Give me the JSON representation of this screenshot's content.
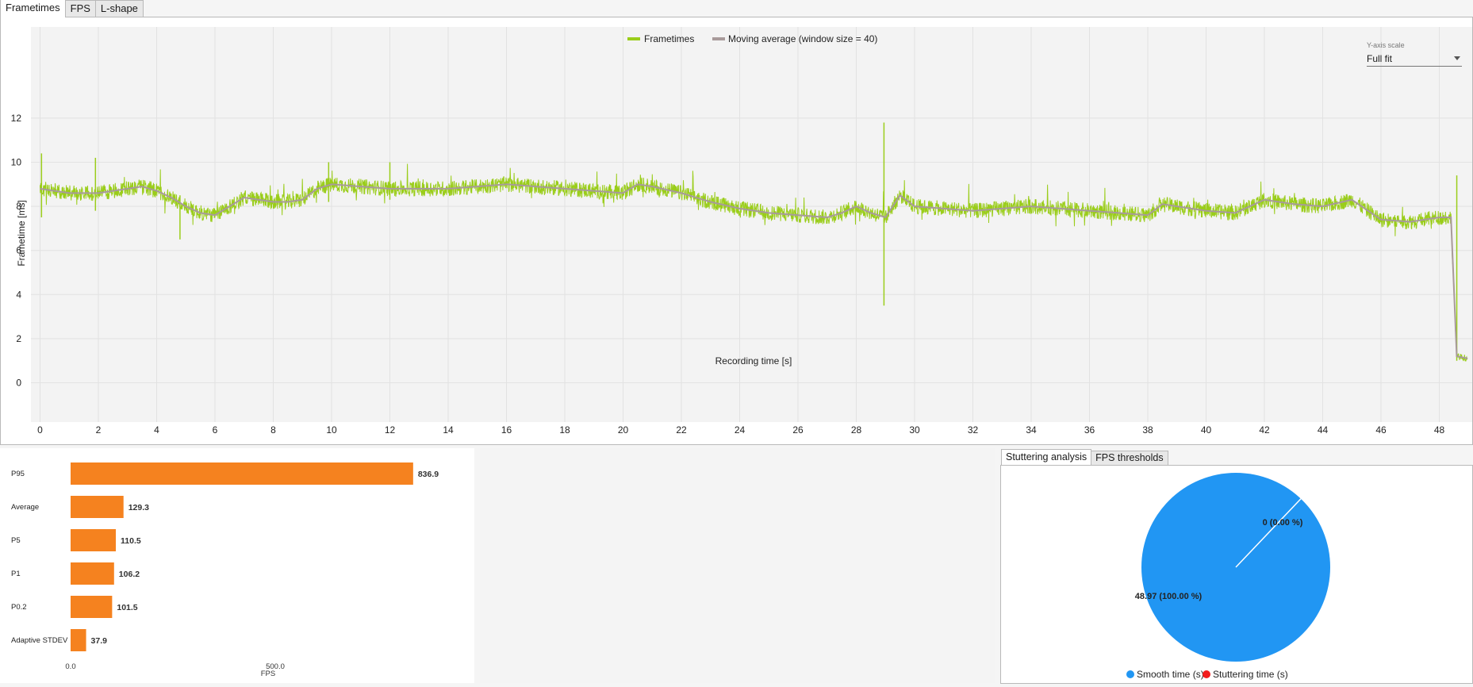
{
  "tabs": [
    {
      "label": "Frametimes",
      "active": true
    },
    {
      "label": "FPS",
      "active": false
    },
    {
      "label": "L-shape",
      "active": false
    }
  ],
  "y_axis_scale": {
    "label": "Y-axis scale",
    "value": "Full fit"
  },
  "chart_data": [
    {
      "type": "line",
      "xlabel": "Recording time [s]",
      "ylabel": "Frametime [ms]",
      "xlim": [
        0,
        48.97
      ],
      "ylim": [
        -0.8,
        13.8
      ],
      "xticks": [
        0,
        2,
        4,
        6,
        8,
        10,
        12,
        14,
        16,
        18,
        20,
        22,
        24,
        26,
        28,
        30,
        32,
        34,
        36,
        38,
        40,
        42,
        44,
        46,
        48
      ],
      "yticks": [
        0,
        2,
        4,
        6,
        8,
        10,
        12
      ],
      "grid": true,
      "legend_position": "top-center",
      "series": [
        {
          "name": "Frametimes",
          "color": "#9acd1a"
        },
        {
          "name": "Moving average (window size = 40)",
          "color": "#a89a9a"
        }
      ],
      "x": [
        0,
        0.5,
        1,
        1.5,
        2,
        2.5,
        3,
        3.5,
        4,
        4.5,
        5,
        5.5,
        6,
        6.5,
        7,
        7.5,
        8,
        8.5,
        9,
        9.5,
        10,
        11,
        12,
        13,
        14,
        15,
        16,
        17,
        18,
        19,
        20,
        20.5,
        21,
        22,
        23,
        24,
        25,
        26,
        27,
        27.5,
        28,
        28.5,
        29,
        29.5,
        30,
        31,
        32,
        33,
        34,
        35,
        36,
        37,
        38,
        38.5,
        39,
        40,
        41,
        42,
        43,
        44,
        45,
        46,
        47,
        48,
        48.4,
        48.6,
        48.97
      ],
      "moving_average": [
        8.8,
        8.7,
        8.6,
        8.6,
        8.6,
        8.7,
        8.8,
        8.9,
        8.7,
        8.4,
        8.0,
        7.7,
        7.6,
        8.0,
        8.4,
        8.3,
        8.2,
        8.2,
        8.3,
        8.8,
        9.0,
        8.9,
        8.8,
        8.8,
        8.8,
        8.9,
        9.0,
        8.9,
        8.8,
        8.7,
        8.6,
        9.0,
        8.9,
        8.6,
        8.2,
        7.9,
        7.7,
        7.6,
        7.5,
        7.7,
        8.0,
        7.7,
        7.5,
        8.5,
        8.0,
        7.9,
        7.8,
        7.9,
        8.0,
        7.9,
        7.8,
        7.7,
        7.6,
        8.1,
        8.0,
        7.8,
        7.7,
        8.3,
        8.1,
        8.0,
        8.3,
        7.4,
        7.3,
        7.5,
        7.5,
        1.2,
        1.1
      ],
      "spikes": [
        {
          "x": 0.05,
          "min": 7.5,
          "max": 10.4
        },
        {
          "x": 1.9,
          "min": 7.8,
          "max": 10.2
        },
        {
          "x": 4.8,
          "min": 6.5,
          "max": 8.5
        },
        {
          "x": 9.9,
          "min": 8.2,
          "max": 10.0
        },
        {
          "x": 12.0,
          "min": 8.3,
          "max": 10.0
        },
        {
          "x": 28.95,
          "min": 3.5,
          "max": 11.8
        },
        {
          "x": 48.6,
          "min": 1.0,
          "max": 9.4
        }
      ]
    },
    {
      "type": "bar",
      "orientation": "horizontal",
      "categories": [
        "P95",
        "Average",
        "P5",
        "P1",
        "P0.2",
        "Adaptive STDEV"
      ],
      "values": [
        836.9,
        129.3,
        110.5,
        106.2,
        101.5,
        37.9
      ],
      "value_labels": [
        "836.9",
        "129.3",
        "110.5",
        "106.2",
        "101.5",
        "37.9"
      ],
      "xlabel": "FPS",
      "xticks": [
        "0.0",
        "500.0"
      ],
      "xlim": [
        0,
        1150
      ],
      "color": "#f5821f"
    },
    {
      "type": "pie",
      "slices": [
        {
          "name": "Smooth time (s)",
          "value": 48.97,
          "label": "48.97 (100.00 %)",
          "color": "#2196f3"
        },
        {
          "name": "Stuttering time (s)",
          "value": 0,
          "label": "0 (0.00 %)",
          "color": "#f21c1c"
        }
      ],
      "legend_position": "bottom"
    }
  ],
  "stutter_tabs": [
    {
      "label": "Stuttering analysis",
      "active": true
    },
    {
      "label": "FPS thresholds",
      "active": false
    }
  ]
}
